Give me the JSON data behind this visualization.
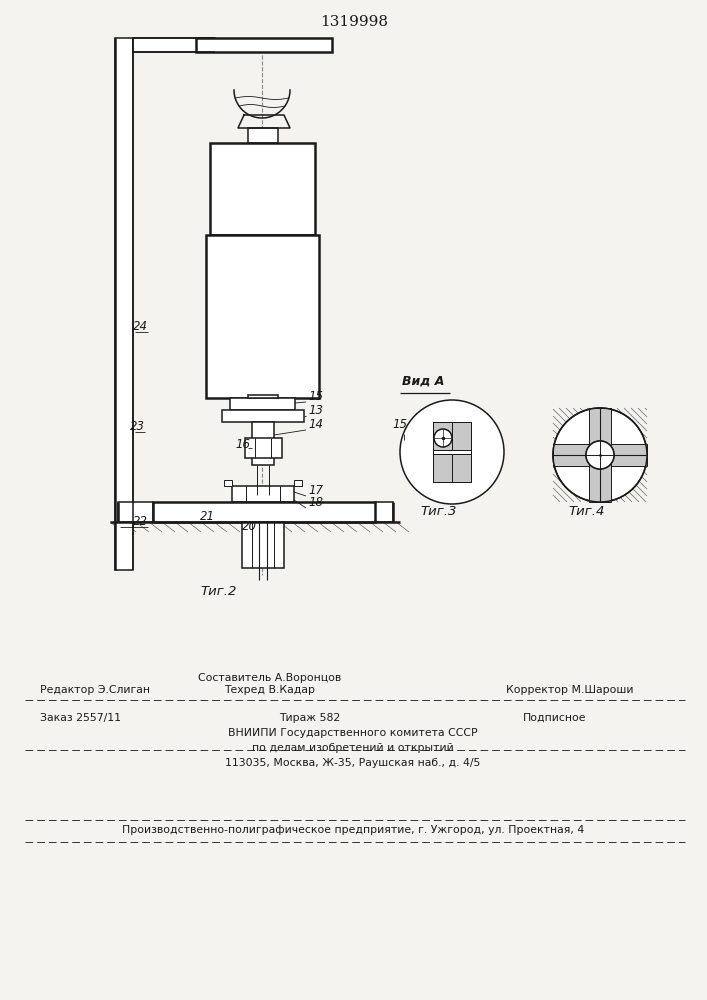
{
  "title": "1319998",
  "bg_color": "#f5f3ef",
  "line_color": "#1a1a1a",
  "fig2_label": "Τиг.2",
  "fig3_label": "Τиг.3",
  "fig4_label": "Τиг.4",
  "vid_a_label": "Вид A",
  "footer_composer": "Составитель А.Воронцов",
  "footer_editor": "Редактор Э.Слиган",
  "footer_techred": "Техред В.Кадар",
  "footer_corrector": "Корректор М.Шароши",
  "footer_order": "Заказ 2557/11",
  "footer_tirazh": "Тираж 582",
  "footer_podpisnoe": "Подписное",
  "footer_vniip1": "ВНИИПИ Государственного комитета СССР",
  "footer_vniip2": "по делам изобретений и открытий",
  "footer_vniip3": "113035, Москва, Ж-35, Раушская наб., д. 4/5",
  "footer_production": "Производственно-полиграфическое предприятие, г. Ужгород, ул. Проектная, 4"
}
